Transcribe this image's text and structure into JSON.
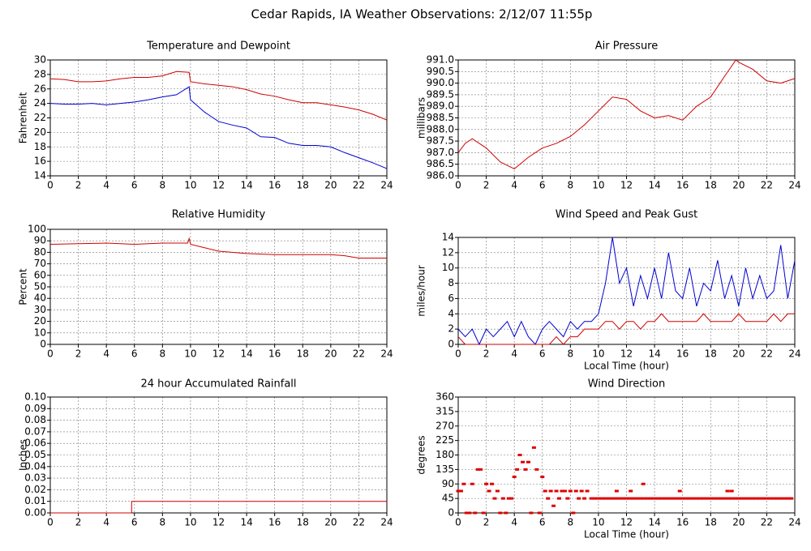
{
  "title": "Cedar Rapids, IA Weather Observations: 2/12/07 11:55p",
  "chart_data": [
    {
      "type": "line",
      "title": "Temperature and Dewpoint",
      "ylabel": "Fahrenheit",
      "x": [
        0,
        1,
        2,
        3,
        4,
        5,
        6,
        7,
        8,
        9,
        9.9,
        10,
        11,
        12,
        13,
        14,
        15,
        16,
        17,
        18,
        19,
        20,
        21,
        22,
        23,
        24
      ],
      "series": [
        {
          "color": "#d00000",
          "values": [
            27.4,
            27.3,
            27.0,
            27.0,
            27.1,
            27.4,
            27.6,
            27.6,
            27.8,
            28.4,
            28.3,
            27.0,
            26.7,
            26.5,
            26.3,
            25.9,
            25.3,
            25.0,
            24.5,
            24.1,
            24.1,
            23.8,
            23.5,
            23.1,
            22.5,
            21.7
          ]
        },
        {
          "color": "#0000d0",
          "values": [
            24.0,
            23.9,
            23.9,
            24.0,
            23.8,
            24.0,
            24.2,
            24.5,
            24.9,
            25.2,
            26.3,
            24.5,
            22.8,
            21.5,
            21.0,
            20.6,
            19.4,
            19.3,
            18.5,
            18.2,
            18.2,
            18.0,
            17.2,
            16.5,
            15.8,
            15.0
          ]
        }
      ],
      "xlim": [
        0,
        24
      ],
      "xticks": [
        0,
        2,
        4,
        6,
        8,
        10,
        12,
        14,
        16,
        18,
        20,
        22,
        24
      ],
      "ylim": [
        14,
        30
      ],
      "yticks": [
        14,
        16,
        18,
        20,
        22,
        24,
        26,
        28,
        30
      ],
      "grid": true
    },
    {
      "type": "line",
      "title": "Air Pressure",
      "ylabel": "millibars",
      "x": [
        0,
        0.5,
        1,
        2,
        3,
        4,
        5,
        6,
        7,
        8,
        9,
        10,
        11,
        12,
        13,
        14,
        15,
        16,
        17,
        18,
        19,
        19.8,
        20,
        21,
        22,
        23,
        24
      ],
      "series": [
        {
          "color": "#d00000",
          "values": [
            987.0,
            987.4,
            987.6,
            987.2,
            986.6,
            986.3,
            986.8,
            987.2,
            987.4,
            987.7,
            988.2,
            988.8,
            989.4,
            989.3,
            988.8,
            988.5,
            988.6,
            988.4,
            989.0,
            989.4,
            990.3,
            991.0,
            990.9,
            990.6,
            990.1,
            990.0,
            990.2
          ]
        }
      ],
      "xlim": [
        0,
        24
      ],
      "xticks": [
        0,
        2,
        4,
        6,
        8,
        10,
        12,
        14,
        16,
        18,
        20,
        22,
        24
      ],
      "ylim": [
        986,
        991
      ],
      "yticks": [
        {
          "value": 986,
          "label": "986.0"
        },
        986.5,
        {
          "value": 987,
          "label": "987.0"
        },
        987.5,
        {
          "value": 988,
          "label": "988.0"
        },
        988.5,
        {
          "value": 989,
          "label": "989.0"
        },
        989.5,
        {
          "value": 990,
          "label": "990.0"
        },
        990.5,
        {
          "value": 991,
          "label": "991.0"
        }
      ],
      "grid": true
    },
    {
      "type": "line",
      "title": "Relative Humidity",
      "ylabel": "Percent",
      "x": [
        0,
        2,
        4,
        6,
        8,
        9.8,
        9.9,
        10,
        11,
        12,
        14,
        16,
        18,
        20,
        21,
        22,
        24
      ],
      "series": [
        {
          "color": "#d00000",
          "values": [
            87,
            87.5,
            88,
            87,
            88,
            88,
            92,
            87,
            84,
            81,
            79,
            78,
            78,
            78,
            77,
            75,
            75
          ]
        }
      ],
      "xlim": [
        0,
        24
      ],
      "xticks": [
        0,
        2,
        4,
        6,
        8,
        10,
        12,
        14,
        16,
        18,
        20,
        22,
        24
      ],
      "ylim": [
        0,
        100
      ],
      "yticks": [
        0,
        10,
        20,
        30,
        40,
        50,
        60,
        70,
        80,
        90,
        100
      ],
      "grid": true
    },
    {
      "type": "line",
      "title": "Wind Speed and Peak Gust",
      "ylabel": "miles/hour",
      "xlabel": "Local Time (hour)",
      "x": [
        0,
        0.5,
        1,
        1.5,
        2,
        2.5,
        3,
        3.5,
        4,
        4.5,
        5,
        5.5,
        6,
        6.5,
        7,
        7.5,
        8,
        8.5,
        9,
        9.5,
        10,
        10.5,
        11,
        11.5,
        12,
        12.5,
        13,
        13.5,
        14,
        14.5,
        15,
        15.5,
        16,
        16.5,
        17,
        17.5,
        18,
        18.5,
        19,
        19.5,
        20,
        20.5,
        21,
        21.5,
        22,
        22.5,
        23,
        23.5,
        24
      ],
      "series": [
        {
          "color": "#0000d0",
          "values": [
            2,
            1,
            2,
            0,
            2,
            1,
            2,
            3,
            1,
            3,
            1,
            0,
            2,
            3,
            2,
            1,
            3,
            2,
            3,
            3,
            4,
            8,
            14,
            8,
            10,
            5,
            9,
            6,
            10,
            6,
            12,
            7,
            6,
            10,
            5,
            8,
            7,
            11,
            6,
            9,
            5,
            10,
            6,
            9,
            6,
            7,
            13,
            6,
            11
          ]
        },
        {
          "color": "#d00000",
          "values": [
            1,
            0,
            0,
            0,
            0,
            0,
            0,
            0,
            0,
            0,
            0,
            0,
            0,
            0,
            1,
            0,
            1,
            1,
            2,
            2,
            2,
            3,
            3,
            2,
            3,
            3,
            2,
            3,
            3,
            4,
            3,
            3,
            3,
            3,
            3,
            4,
            3,
            3,
            3,
            3,
            4,
            3,
            3,
            3,
            3,
            4,
            3,
            4,
            4
          ]
        }
      ],
      "xlim": [
        0,
        24
      ],
      "xticks": [
        0,
        2,
        4,
        6,
        8,
        10,
        12,
        14,
        16,
        18,
        20,
        22,
        24
      ],
      "ylim": [
        0,
        14
      ],
      "yticks": [
        0,
        2,
        4,
        6,
        8,
        10,
        12,
        14
      ],
      "grid": true
    },
    {
      "type": "line",
      "title": "24 hour Accumulated Rainfall",
      "ylabel": "Inches",
      "x": [
        0,
        5.8,
        5.8,
        24
      ],
      "series": [
        {
          "color": "#d00000",
          "values": [
            0,
            0,
            0.01,
            0.01
          ]
        }
      ],
      "xlim": [
        0,
        24
      ],
      "xticks": [
        0,
        2,
        4,
        6,
        8,
        10,
        12,
        14,
        16,
        18,
        20,
        22,
        24
      ],
      "ylim": [
        0,
        0.1
      ],
      "yticks": [
        {
          "value": 0,
          "label": "0.00"
        },
        {
          "value": 0.01,
          "label": "0.01"
        },
        {
          "value": 0.02,
          "label": "0.02"
        },
        {
          "value": 0.03,
          "label": "0.03"
        },
        {
          "value": 0.04,
          "label": "0.04"
        },
        {
          "value": 0.05,
          "label": "0.05"
        },
        {
          "value": 0.06,
          "label": "0.06"
        },
        {
          "value": 0.07,
          "label": "0.07"
        },
        {
          "value": 0.08,
          "label": "0.08"
        },
        {
          "value": 0.09,
          "label": "0.09"
        },
        {
          "value": 0.1,
          "label": "0.10"
        }
      ],
      "grid": true
    },
    {
      "type": "scatter",
      "title": "Wind Direction",
      "ylabel": "degrees",
      "xlabel": "Local Time (hour)",
      "x": [
        0,
        0.2,
        0.4,
        0.6,
        0.8,
        1.0,
        1.2,
        1.4,
        1.6,
        1.8,
        2.0,
        2.2,
        2.4,
        2.6,
        2.8,
        3.0,
        3.2,
        3.4,
        3.6,
        3.8,
        4.0,
        4.2,
        4.4,
        4.6,
        4.8,
        5.0,
        5.2,
        5.4,
        5.6,
        5.8,
        6.0,
        6.2,
        6.4,
        6.6,
        6.8,
        7.0,
        7.2,
        7.4,
        7.6,
        7.8,
        8.0,
        8.2,
        8.4,
        8.6,
        8.8,
        9.0,
        9.2,
        11.3,
        12.3,
        13.2,
        15.8,
        19.2,
        19.5,
        9.5,
        9.75,
        10,
        10.25,
        10.5,
        10.75,
        11,
        11.25,
        11.5,
        11.75,
        12,
        12.25,
        12.5,
        12.75,
        13,
        13.25,
        13.5,
        13.75,
        14,
        14.25,
        14.5,
        14.75,
        15,
        15.25,
        15.5,
        15.75,
        16,
        16.25,
        16.5,
        16.75,
        17,
        17.25,
        17.5,
        17.75,
        18,
        18.25,
        18.5,
        18.75,
        19,
        19.25,
        19.5,
        19.75,
        20,
        20.25,
        20.5,
        20.75,
        21,
        21.25,
        21.5,
        21.75,
        22,
        22.25,
        22.5,
        22.75,
        23,
        23.25,
        23.5,
        23.75,
        24
      ],
      "series": [
        {
          "color": "#e00000",
          "values": [
            68,
            68,
            90,
            0,
            0,
            90,
            0,
            135,
            135,
            0,
            90,
            68,
            90,
            45,
            68,
            0,
            45,
            0,
            45,
            45,
            112,
            135,
            180,
            158,
            135,
            158,
            0,
            203,
            135,
            0,
            112,
            68,
            45,
            68,
            22,
            68,
            45,
            68,
            68,
            45,
            68,
            0,
            68,
            45,
            68,
            45,
            68,
            68,
            68,
            90,
            68,
            68,
            68,
            45,
            45,
            45,
            45,
            45,
            45,
            45,
            45,
            45,
            45,
            45,
            45,
            45,
            45,
            45,
            45,
            45,
            45,
            45,
            45,
            45,
            45,
            45,
            45,
            45,
            45,
            45,
            45,
            45,
            45,
            45,
            45,
            45,
            45,
            45,
            45,
            45,
            45,
            45,
            45,
            45,
            45,
            45,
            45,
            45,
            45,
            45,
            45,
            45,
            45,
            45,
            45,
            45,
            45,
            45,
            45,
            45,
            45
          ]
        }
      ],
      "xlim": [
        0,
        24
      ],
      "xticks": [
        0,
        2,
        4,
        6,
        8,
        10,
        12,
        14,
        16,
        18,
        20,
        22,
        24
      ],
      "ylim": [
        0,
        360
      ],
      "yticks": [
        0,
        45,
        90,
        135,
        180,
        225,
        270,
        315,
        360
      ],
      "grid": true
    }
  ]
}
